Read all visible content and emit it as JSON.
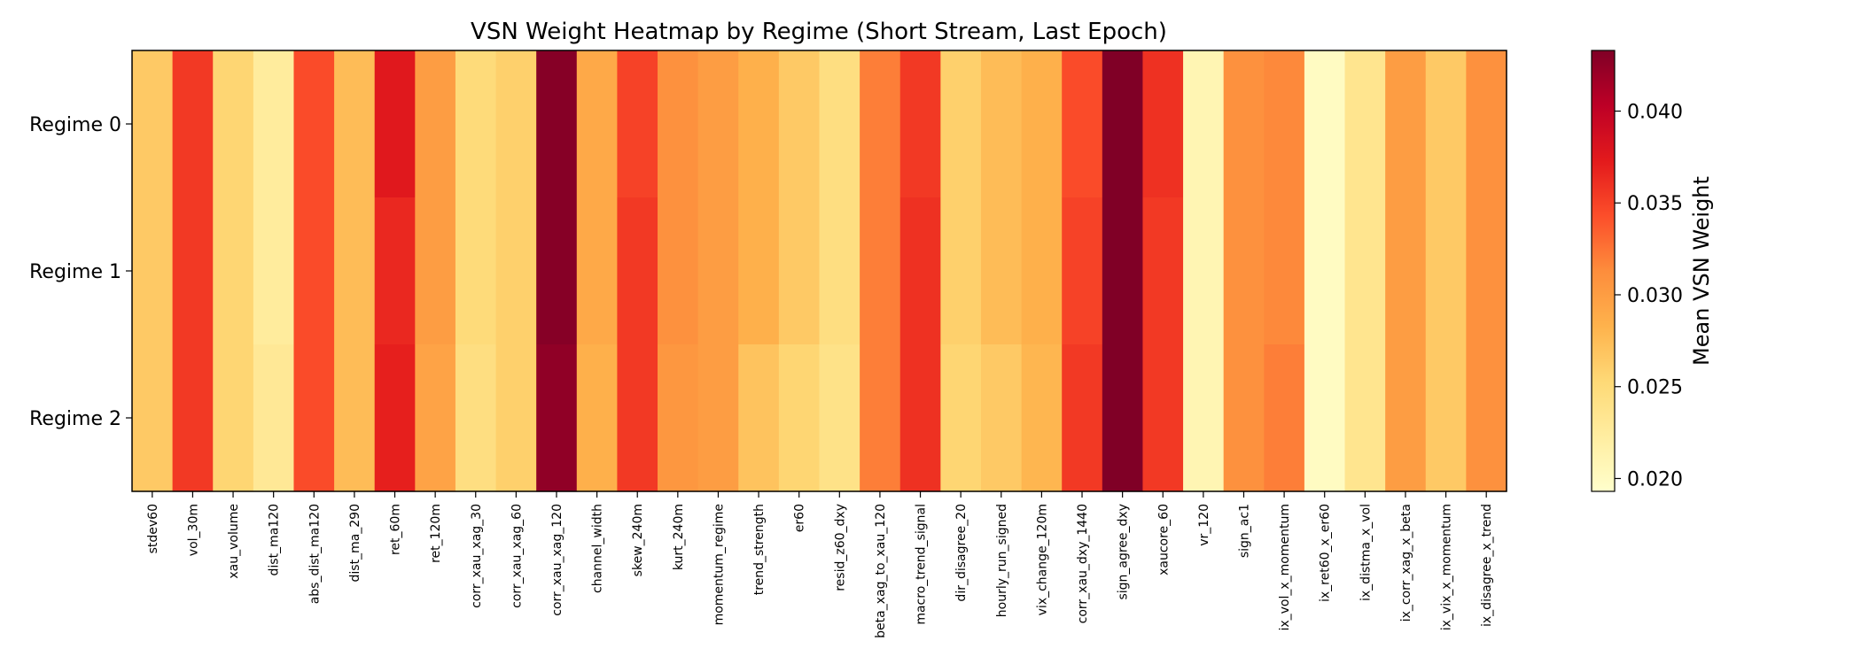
{
  "chart_data": {
    "type": "heatmap",
    "title": "VSN Weight Heatmap by Regime (Short Stream, Last Epoch)",
    "rows": [
      "Regime 0",
      "Regime 1",
      "Regime 2"
    ],
    "columns": [
      "stdev60",
      "vol_30m",
      "xau_volume",
      "dist_ma120",
      "abs_dist_ma120",
      "dist_ma_290",
      "ret_60m",
      "ret_120m",
      "corr_xau_xag_30",
      "corr_xau_xag_60",
      "corr_xau_xag_120",
      "channel_width",
      "skew_240m",
      "kurt_240m",
      "momentum_regime",
      "trend_strength",
      "er60",
      "resid_z60_dxy",
      "beta_xag_to_xau_120",
      "macro_trend_signal",
      "dir_disagree_20",
      "hourly_run_signed",
      "vix_change_120m",
      "corr_xau_dxy_1440",
      "sign_agree_dxy",
      "xaucore_60",
      "vr_120",
      "sign_ac1",
      "ix_vol_x_momentum",
      "ix_ret60_x_er60",
      "ix_distma_x_vol",
      "ix_corr_xag_x_beta",
      "ix_vix_x_momentum",
      "ix_disagree_x_trend"
    ],
    "values": [
      [
        0.0265,
        0.0355,
        0.0255,
        0.0225,
        0.0345,
        0.0275,
        0.0375,
        0.03,
        0.025,
        0.026,
        0.043,
        0.029,
        0.035,
        0.031,
        0.03,
        0.0285,
        0.0265,
        0.0245,
        0.032,
        0.0355,
        0.026,
        0.0275,
        0.0285,
        0.0345,
        0.0435,
        0.036,
        0.021,
        0.031,
        0.0315,
        0.02,
        0.0235,
        0.03,
        0.0265,
        0.031
      ],
      [
        0.0265,
        0.0355,
        0.0255,
        0.0225,
        0.0345,
        0.0275,
        0.0365,
        0.03,
        0.025,
        0.026,
        0.043,
        0.029,
        0.0355,
        0.031,
        0.03,
        0.0285,
        0.0265,
        0.0245,
        0.032,
        0.036,
        0.026,
        0.0275,
        0.0285,
        0.035,
        0.0435,
        0.0355,
        0.021,
        0.031,
        0.0315,
        0.02,
        0.0235,
        0.03,
        0.0265,
        0.031
      ],
      [
        0.0265,
        0.0355,
        0.0255,
        0.023,
        0.0345,
        0.0275,
        0.037,
        0.0295,
        0.0245,
        0.026,
        0.0425,
        0.0285,
        0.0355,
        0.0305,
        0.03,
        0.027,
        0.0255,
        0.024,
        0.032,
        0.036,
        0.0255,
        0.0265,
        0.028,
        0.0355,
        0.0435,
        0.0355,
        0.021,
        0.031,
        0.032,
        0.02,
        0.0235,
        0.03,
        0.0265,
        0.031
      ]
    ],
    "vmin": 0.0193,
    "vmax": 0.0433,
    "colormap": "YlOrRd",
    "colorbar": {
      "label": "Mean VSN Weight",
      "ticks": [
        0.02,
        0.025,
        0.03,
        0.035,
        0.04
      ],
      "tick_labels": [
        "0.020",
        "0.025",
        "0.030",
        "0.035",
        "0.040"
      ]
    }
  }
}
